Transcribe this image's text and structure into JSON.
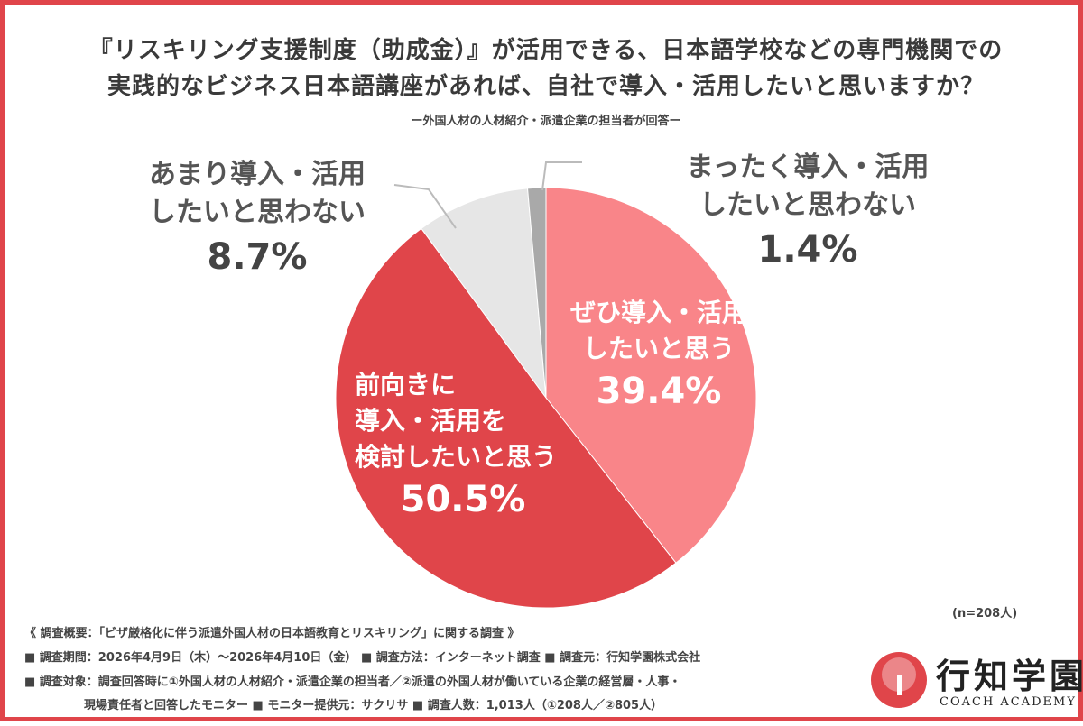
{
  "title_line1": "『リスキリング支援制度（助成金）』が活用できる、日本語学校などの専門機関での",
  "title_line2": "実践的なビジネス日本語講座があれば、自社で導入・活用したいと思いますか？",
  "subtitle": "ー外国人材の人材紹介・派遣企業の担当者が回答ー",
  "chart_data": {
    "type": "pie",
    "title": "『リスキリング支援制度（助成金）』が活用できる、日本語学校などの専門機関での実践的なビジネス日本語講座があれば、自社で導入・活用したいと思いますか？",
    "slices": [
      {
        "label_lines": [
          "ぜひ導入・活用",
          "したいと思う"
        ],
        "value": 39.4,
        "display": "39.4%",
        "color": "#f98589"
      },
      {
        "label_lines": [
          "前向きに",
          "導入・活用を",
          "検討したいと思う"
        ],
        "value": 50.5,
        "display": "50.5%",
        "color": "#e0454a"
      },
      {
        "label_lines": [
          "あまり導入・活用",
          "したいと思わない"
        ],
        "value": 8.7,
        "display": "8.7%",
        "color": "#e6e6e6"
      },
      {
        "label_lines": [
          "まったく導入・活用",
          "したいと思わない"
        ],
        "value": 1.4,
        "display": "1.4%",
        "color": "#a9a9a9"
      }
    ],
    "unit": "%",
    "legend": "none"
  },
  "sample_size": "(n=208人)",
  "overview": {
    "line0": "《 調査概要：「ビザ厳格化に伴う派遣外国人材の日本語教育とリスキリング」に関する調査 》",
    "period": "■ 調査期間：2026年4月9日（木）～2026年4月10日（金）",
    "method": "■ 調査方法：インターネット調査",
    "source": "■ 調査元：行知学園株式会社",
    "target": "■ 調査対象：調査回答時に①外国人材の人材紹介・派遣企業の担当者／②派遣の外国人材が働いている企業の経営層・人事・",
    "target_cont": "現場責任者と回答したモニター",
    "provider": "■ モニター提供元：サクリサ",
    "count": "■ 調査人数：1,013人（①208人／②805人）"
  },
  "logo": {
    "name": "行知学園",
    "sub": "COACH ACADEMY"
  }
}
